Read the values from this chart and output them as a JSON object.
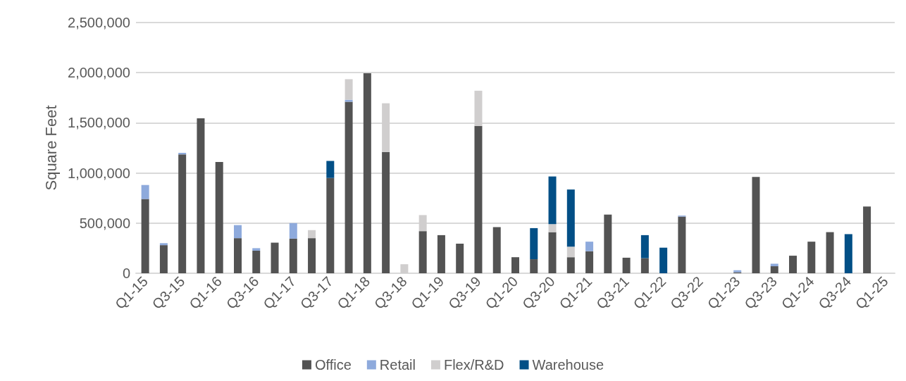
{
  "chart_data": {
    "type": "bar",
    "stacked": true,
    "ylabel": "Square Feet",
    "categories": [
      "Q1-15",
      null,
      "Q3-15",
      null,
      "Q1-16",
      null,
      "Q3-16",
      null,
      "Q1-17",
      null,
      "Q3-17",
      null,
      "Q1-18",
      null,
      "Q3-18",
      null,
      "Q1-19",
      null,
      "Q3-19",
      null,
      "Q1-20",
      null,
      "Q3-20",
      null,
      "Q1-21",
      null,
      "Q3-21",
      null,
      "Q1-22",
      null,
      "Q3-22",
      null,
      "Q1-23",
      null,
      "Q3-23",
      null,
      "Q1-24",
      null,
      "Q3-24",
      null,
      "Q1-25"
    ],
    "series": [
      {
        "name": "Office",
        "color": "#535353",
        "values": [
          740000,
          280000,
          1185000,
          1545000,
          1110000,
          350000,
          225000,
          305000,
          345000,
          350000,
          950000,
          1710000,
          1995000,
          1210000,
          null,
          420000,
          380000,
          295000,
          1470000,
          460000,
          160000,
          140000,
          410000,
          160000,
          220000,
          585000,
          155000,
          150000,
          null,
          565000,
          null,
          null,
          10000,
          960000,
          70000,
          175000,
          315000,
          410000,
          null,
          665000,
          null
        ]
      },
      {
        "name": "Retail",
        "color": "#8eaadc",
        "values": [
          140000,
          20000,
          15000,
          null,
          null,
          130000,
          25000,
          null,
          155000,
          null,
          null,
          20000,
          null,
          null,
          null,
          null,
          null,
          null,
          null,
          null,
          null,
          null,
          null,
          null,
          95000,
          null,
          null,
          null,
          null,
          10000,
          null,
          null,
          20000,
          null,
          25000,
          null,
          null,
          null,
          null,
          null,
          null
        ]
      },
      {
        "name": "Flex/R&D",
        "color": "#d0cece",
        "values": [
          null,
          null,
          null,
          null,
          null,
          null,
          null,
          null,
          null,
          80000,
          null,
          205000,
          null,
          485000,
          90000,
          160000,
          null,
          null,
          350000,
          null,
          null,
          null,
          80000,
          105000,
          null,
          null,
          null,
          null,
          null,
          null,
          null,
          null,
          null,
          null,
          null,
          null,
          null,
          null,
          null,
          null,
          null
        ]
      },
      {
        "name": "Warehouse",
        "color": "#024f86",
        "values": [
          null,
          null,
          null,
          null,
          null,
          null,
          null,
          null,
          null,
          null,
          170000,
          null,
          null,
          null,
          null,
          null,
          null,
          null,
          null,
          null,
          null,
          310000,
          475000,
          570000,
          null,
          null,
          null,
          230000,
          255000,
          null,
          null,
          null,
          null,
          null,
          null,
          null,
          null,
          null,
          390000,
          null,
          null
        ]
      }
    ],
    "ylim": [
      0,
      2500000
    ],
    "yticks": [
      0,
      {
        "value": 500000,
        "label": "500,000"
      },
      {
        "value": 1000000,
        "label": "1,000,000"
      },
      {
        "value": 1500000,
        "label": "1,500,000"
      },
      {
        "value": 2000000,
        "label": "2,000,000"
      },
      {
        "value": 2500000,
        "label": "2,500,000"
      }
    ],
    "grid": "y",
    "legend": "bottom"
  }
}
